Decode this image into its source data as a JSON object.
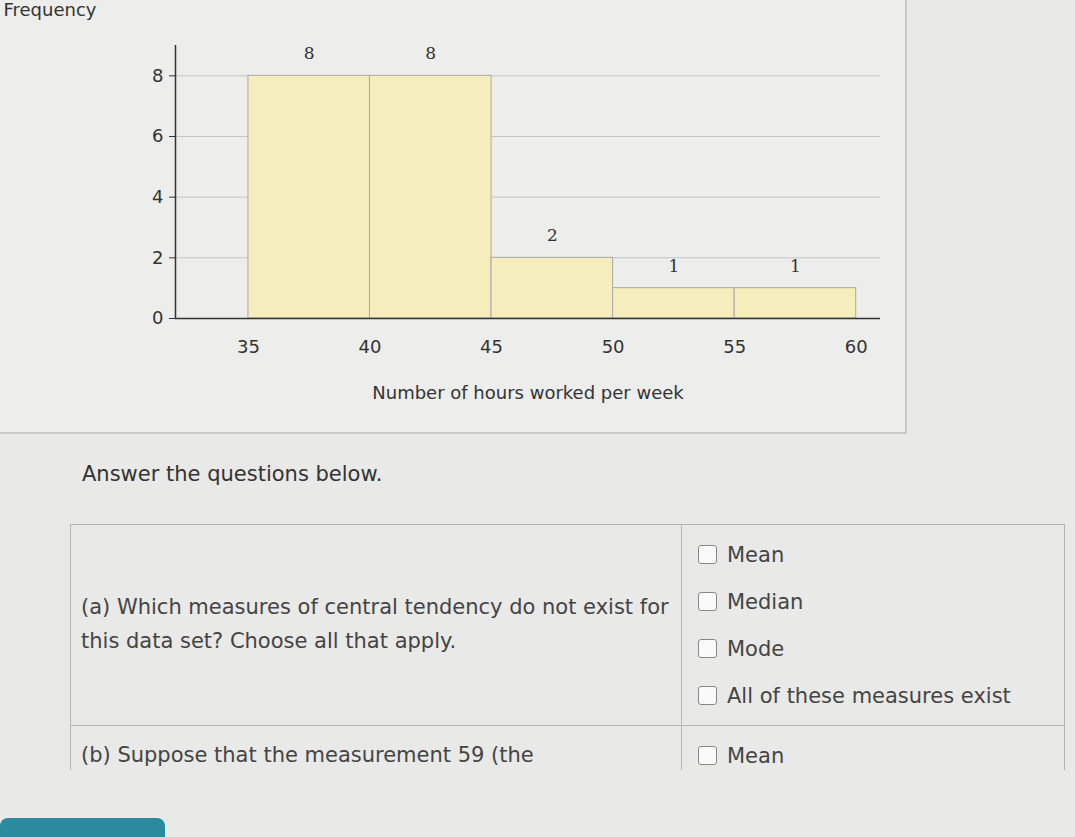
{
  "chart_data": {
    "type": "histogram",
    "xlabel": "Number of hours worked per week",
    "ylabel": "Frequency",
    "bins": [
      35,
      40,
      45,
      50,
      55,
      60
    ],
    "values": [
      8,
      8,
      2,
      1,
      1
    ],
    "color": "#f6edbd",
    "xlim": [
      32,
      61
    ],
    "ylim": [
      0,
      9
    ],
    "xticks": [
      35,
      40,
      45,
      50,
      55,
      60
    ],
    "yticks": [
      0,
      2,
      4,
      6,
      8
    ],
    "grid": true,
    "data_labels": true
  },
  "instruction": "Answer the questions below.",
  "questions": [
    {
      "prompt": "(a) Which measures of central tendency do not exist for this data set? Choose all that apply.",
      "options": [
        "Mean",
        "Median",
        "Mode",
        "All of these measures exist"
      ]
    },
    {
      "prompt": "(b) Suppose that the measurement 59 (the",
      "options": [
        "Mean"
      ]
    }
  ]
}
